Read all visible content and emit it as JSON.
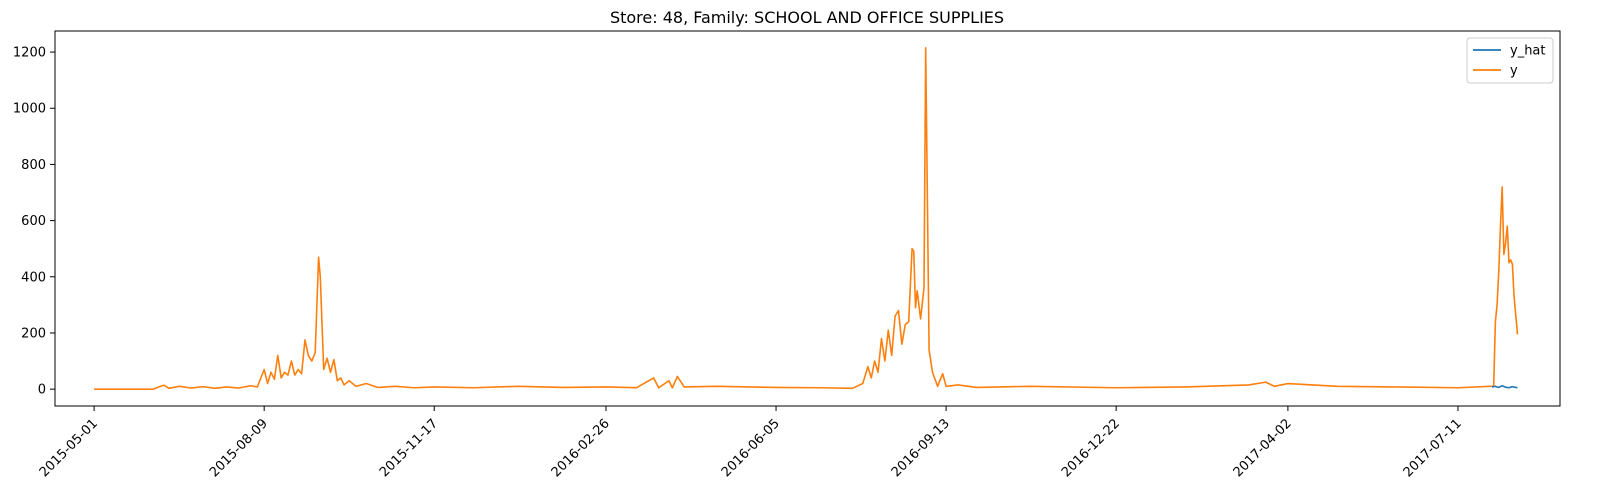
{
  "chart_data": {
    "type": "line",
    "title": "Store: 48, Family: SCHOOL AND OFFICE SUPPLIES",
    "xlabel": "",
    "ylabel": "",
    "xlim": [
      "2015-04-08",
      "2017-09-09"
    ],
    "ylim": [
      -60,
      1275
    ],
    "x_ticks": [
      "2015-05-01",
      "2015-08-09",
      "2015-11-17",
      "2016-02-26",
      "2016-06-05",
      "2016-09-13",
      "2016-12-22",
      "2017-04-02",
      "2017-07-11"
    ],
    "y_ticks": [
      0,
      200,
      400,
      600,
      800,
      1000,
      1200
    ],
    "grid": false,
    "legend_position": "top-right",
    "series": [
      {
        "name": "y_hat",
        "color": "#1f77b4",
        "points": [
          [
            "2017-07-31",
            8
          ],
          [
            "2017-08-02",
            10
          ],
          [
            "2017-08-04",
            6
          ],
          [
            "2017-08-06",
            12
          ],
          [
            "2017-08-08",
            7
          ],
          [
            "2017-08-10",
            5
          ],
          [
            "2017-08-12",
            9
          ],
          [
            "2017-08-14",
            6
          ],
          [
            "2017-08-15",
            5
          ]
        ]
      },
      {
        "name": "y",
        "color": "#ff7f0e",
        "points": [
          [
            "2015-05-01",
            0
          ],
          [
            "2015-06-05",
            0
          ],
          [
            "2015-06-08",
            8
          ],
          [
            "2015-06-11",
            14
          ],
          [
            "2015-06-14",
            3
          ],
          [
            "2015-06-20",
            10
          ],
          [
            "2015-06-27",
            4
          ],
          [
            "2015-07-04",
            9
          ],
          [
            "2015-07-11",
            3
          ],
          [
            "2015-07-18",
            8
          ],
          [
            "2015-07-25",
            4
          ],
          [
            "2015-08-01",
            12
          ],
          [
            "2015-08-05",
            8
          ],
          [
            "2015-08-09",
            70
          ],
          [
            "2015-08-11",
            20
          ],
          [
            "2015-08-13",
            60
          ],
          [
            "2015-08-15",
            35
          ],
          [
            "2015-08-17",
            120
          ],
          [
            "2015-08-19",
            40
          ],
          [
            "2015-08-21",
            60
          ],
          [
            "2015-08-23",
            50
          ],
          [
            "2015-08-25",
            100
          ],
          [
            "2015-08-27",
            50
          ],
          [
            "2015-08-29",
            70
          ],
          [
            "2015-08-31",
            55
          ],
          [
            "2015-09-02",
            175
          ],
          [
            "2015-09-04",
            120
          ],
          [
            "2015-09-06",
            100
          ],
          [
            "2015-09-08",
            130
          ],
          [
            "2015-09-10",
            470
          ],
          [
            "2015-09-11",
            400
          ],
          [
            "2015-09-13",
            70
          ],
          [
            "2015-09-15",
            110
          ],
          [
            "2015-09-17",
            60
          ],
          [
            "2015-09-19",
            105
          ],
          [
            "2015-09-21",
            30
          ],
          [
            "2015-09-23",
            40
          ],
          [
            "2015-09-25",
            15
          ],
          [
            "2015-09-28",
            30
          ],
          [
            "2015-10-02",
            10
          ],
          [
            "2015-10-08",
            20
          ],
          [
            "2015-10-15",
            6
          ],
          [
            "2015-10-25",
            10
          ],
          [
            "2015-11-05",
            5
          ],
          [
            "2015-11-17",
            8
          ],
          [
            "2015-12-10",
            5
          ],
          [
            "2016-01-05",
            10
          ],
          [
            "2016-02-01",
            6
          ],
          [
            "2016-02-26",
            8
          ],
          [
            "2016-03-15",
            5
          ],
          [
            "2016-03-25",
            40
          ],
          [
            "2016-03-28",
            5
          ],
          [
            "2016-04-03",
            30
          ],
          [
            "2016-04-05",
            5
          ],
          [
            "2016-04-08",
            45
          ],
          [
            "2016-04-12",
            8
          ],
          [
            "2016-05-01",
            10
          ],
          [
            "2016-06-05",
            6
          ],
          [
            "2016-07-01",
            5
          ],
          [
            "2016-07-20",
            3
          ],
          [
            "2016-07-26",
            20
          ],
          [
            "2016-07-29",
            80
          ],
          [
            "2016-07-31",
            40
          ],
          [
            "2016-08-02",
            100
          ],
          [
            "2016-08-04",
            60
          ],
          [
            "2016-08-06",
            180
          ],
          [
            "2016-08-08",
            100
          ],
          [
            "2016-08-10",
            210
          ],
          [
            "2016-08-12",
            120
          ],
          [
            "2016-08-14",
            260
          ],
          [
            "2016-08-16",
            280
          ],
          [
            "2016-08-18",
            160
          ],
          [
            "2016-08-20",
            230
          ],
          [
            "2016-08-22",
            240
          ],
          [
            "2016-08-24",
            500
          ],
          [
            "2016-08-25",
            490
          ],
          [
            "2016-08-26",
            290
          ],
          [
            "2016-08-27",
            350
          ],
          [
            "2016-08-29",
            250
          ],
          [
            "2016-08-31",
            360
          ],
          [
            "2016-09-01",
            1215
          ],
          [
            "2016-09-03",
            140
          ],
          [
            "2016-09-05",
            60
          ],
          [
            "2016-09-08",
            10
          ],
          [
            "2016-09-11",
            55
          ],
          [
            "2016-09-13",
            10
          ],
          [
            "2016-09-20",
            15
          ],
          [
            "2016-10-01",
            6
          ],
          [
            "2016-11-01",
            10
          ],
          [
            "2016-12-22",
            5
          ],
          [
            "2017-02-01",
            8
          ],
          [
            "2017-03-10",
            15
          ],
          [
            "2017-03-20",
            25
          ],
          [
            "2017-03-25",
            10
          ],
          [
            "2017-04-02",
            20
          ],
          [
            "2017-05-01",
            10
          ],
          [
            "2017-06-01",
            8
          ],
          [
            "2017-07-11",
            5
          ],
          [
            "2017-07-30",
            10
          ],
          [
            "2017-08-01",
            10
          ],
          [
            "2017-08-02",
            240
          ],
          [
            "2017-08-03",
            300
          ],
          [
            "2017-08-04",
            420
          ],
          [
            "2017-08-05",
            580
          ],
          [
            "2017-08-06",
            720
          ],
          [
            "2017-08-07",
            480
          ],
          [
            "2017-08-08",
            520
          ],
          [
            "2017-08-09",
            580
          ],
          [
            "2017-08-10",
            450
          ],
          [
            "2017-08-11",
            460
          ],
          [
            "2017-08-12",
            445
          ],
          [
            "2017-08-13",
            330
          ],
          [
            "2017-08-15",
            195
          ]
        ]
      }
    ]
  }
}
